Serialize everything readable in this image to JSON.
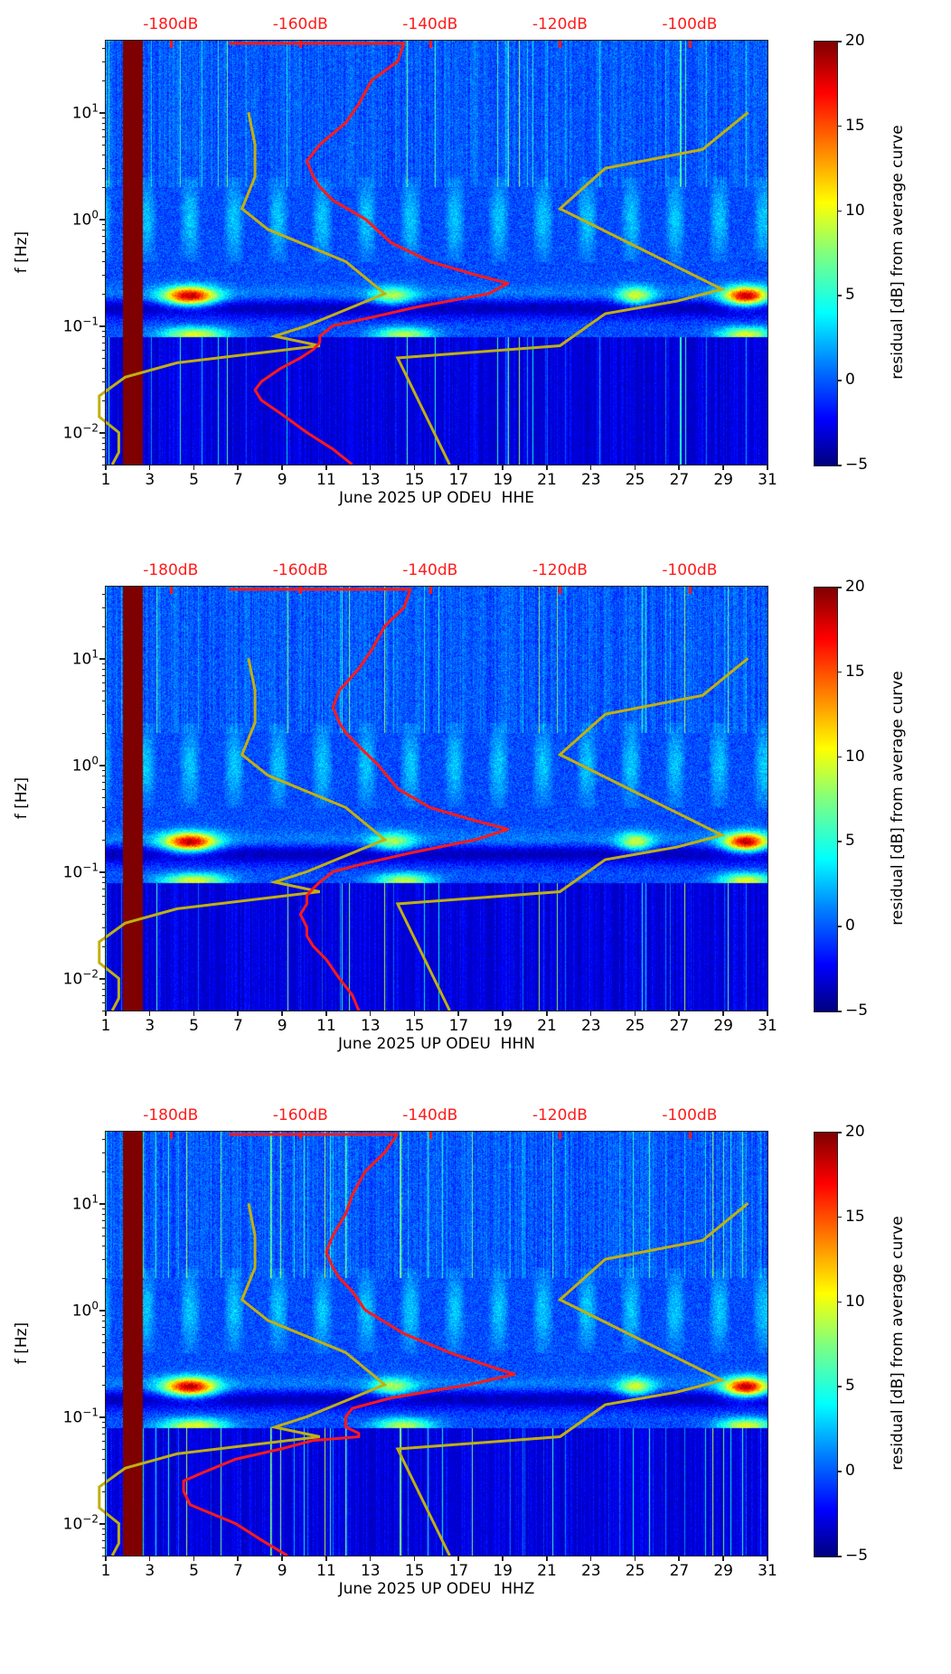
{
  "chart_data": [
    {
      "type": "heatmap",
      "component": "HHE",
      "xlabel": "June 2025 UP ODEU  HHE",
      "ylabel": "f [Hz]",
      "xlim": [
        1,
        31
      ],
      "ylim": [
        0.005,
        47
      ],
      "yscale": "log",
      "x_ticks": [
        "1",
        "3",
        "5",
        "7",
        "9",
        "11",
        "13",
        "15",
        "17",
        "19",
        "21",
        "23",
        "25",
        "27",
        "29",
        "31"
      ],
      "y_ticks": [
        {
          "base": "10",
          "exp": "1",
          "value": 10
        },
        {
          "base": "10",
          "exp": "0",
          "value": 1
        },
        {
          "base": "10",
          "exp": "−1",
          "value": 0.1
        },
        {
          "base": "10",
          "exp": "−2",
          "value": 0.01
        }
      ],
      "top_axis_ticks": [
        "-180dB",
        "-160dB",
        "-140dB",
        "-120dB",
        "-100dB"
      ],
      "top_axis_range_db": [
        -190,
        -88
      ],
      "colorbar": {
        "label": "residual [dB] from average curve",
        "min": -5,
        "max": 20,
        "ticks": [
          "20",
          "15",
          "10",
          "5",
          "0",
          "−5"
        ],
        "colormap": "jet"
      },
      "gap_days": [
        1.75,
        2.65
      ],
      "average_psd_db": {
        "freq_hz": [
          45,
          30,
          20,
          12,
          8,
          5,
          3.5,
          2.5,
          2,
          1.5,
          1,
          0.6,
          0.4,
          0.3,
          0.25,
          0.2,
          0.15,
          0.12,
          0.1,
          0.08,
          0.07,
          0.06,
          0.05,
          0.04,
          0.03,
          0.025,
          0.02,
          0.015,
          0.01,
          0.007,
          0.005
        ],
        "db": [
          -144,
          -145,
          -149,
          -151,
          -153,
          -157,
          -159,
          -158,
          -157,
          -155,
          -150,
          -146,
          -140,
          -133,
          -128,
          -131,
          -142,
          -149,
          -155,
          -157,
          -157,
          -158,
          -160,
          -163,
          -166,
          -167,
          -166,
          -163,
          -159,
          -155,
          -152
        ]
      },
      "noise_model_db": {
        "low": {
          "freq_hz": [
            10,
            5,
            2.5,
            1.25,
            0.8,
            0.4,
            0.2,
            0.1,
            0.08,
            0.065,
            0.045,
            0.033,
            0.022,
            0.014,
            0.01,
            0.0065,
            0.005
          ],
          "db": [
            -168,
            -167,
            -167,
            -169,
            -165,
            -153,
            -147,
            -159,
            -164,
            -157,
            -179,
            -187,
            -191,
            -191,
            -188,
            -188,
            -189
          ]
        },
        "high": {
          "freq_hz": [
            10,
            4.5,
            3,
            1.25,
            0.22,
            0.17,
            0.13,
            0.065,
            0.05,
            0.005
          ],
          "db": [
            -91,
            -98,
            -113,
            -120,
            -95,
            -102,
            -113,
            -120,
            -145,
            -137
          ]
        }
      }
    },
    {
      "type": "heatmap",
      "component": "HHN",
      "xlabel": "June 2025 UP ODEU  HHN",
      "ylabel": "f [Hz]",
      "xlim": [
        1,
        31
      ],
      "ylim": [
        0.005,
        47
      ],
      "yscale": "log",
      "x_ticks": [
        "1",
        "3",
        "5",
        "7",
        "9",
        "11",
        "13",
        "15",
        "17",
        "19",
        "21",
        "23",
        "25",
        "27",
        "29",
        "31"
      ],
      "y_ticks": [
        {
          "base": "10",
          "exp": "1",
          "value": 10
        },
        {
          "base": "10",
          "exp": "0",
          "value": 1
        },
        {
          "base": "10",
          "exp": "−1",
          "value": 0.1
        },
        {
          "base": "10",
          "exp": "−2",
          "value": 0.01
        }
      ],
      "top_axis_ticks": [
        "-180dB",
        "-160dB",
        "-140dB",
        "-120dB",
        "-100dB"
      ],
      "top_axis_range_db": [
        -190,
        -88
      ],
      "colorbar": {
        "label": "residual [dB] from average curve",
        "min": -5,
        "max": 20,
        "ticks": [
          "20",
          "15",
          "10",
          "5",
          "0",
          "−5"
        ],
        "colormap": "jet"
      },
      "gap_days": [
        1.75,
        2.65
      ],
      "average_psd_db": {
        "freq_hz": [
          45,
          30,
          20,
          12,
          8,
          5,
          3.5,
          2.5,
          2,
          1.5,
          1,
          0.6,
          0.4,
          0.3,
          0.25,
          0.2,
          0.15,
          0.12,
          0.1,
          0.08,
          0.07,
          0.06,
          0.05,
          0.04,
          0.03,
          0.025,
          0.02,
          0.015,
          0.01,
          0.007,
          0.005
        ],
        "db": [
          -143,
          -144,
          -147,
          -149,
          -151,
          -154,
          -155,
          -154,
          -153,
          -151,
          -148,
          -145,
          -140,
          -133,
          -128,
          -133,
          -143,
          -150,
          -155,
          -157,
          -158,
          -159,
          -159,
          -160,
          -159,
          -159,
          -158,
          -156,
          -154,
          -152,
          -151
        ]
      },
      "noise_model_db": {
        "low": {
          "freq_hz": [
            10,
            5,
            2.5,
            1.25,
            0.8,
            0.4,
            0.2,
            0.1,
            0.08,
            0.065,
            0.045,
            0.033,
            0.022,
            0.014,
            0.01,
            0.0065,
            0.005
          ],
          "db": [
            -168,
            -167,
            -167,
            -169,
            -165,
            -153,
            -147,
            -159,
            -164,
            -157,
            -179,
            -187,
            -191,
            -191,
            -188,
            -188,
            -189
          ]
        },
        "high": {
          "freq_hz": [
            10,
            4.5,
            3,
            1.25,
            0.22,
            0.17,
            0.13,
            0.065,
            0.05,
            0.005
          ],
          "db": [
            -91,
            -98,
            -113,
            -120,
            -95,
            -102,
            -113,
            -120,
            -145,
            -137
          ]
        }
      }
    },
    {
      "type": "heatmap",
      "component": "HHZ",
      "xlabel": "June 2025 UP ODEU  HHZ",
      "ylabel": "f [Hz]",
      "xlim": [
        1,
        31
      ],
      "ylim": [
        0.005,
        47
      ],
      "yscale": "log",
      "x_ticks": [
        "1",
        "3",
        "5",
        "7",
        "9",
        "11",
        "13",
        "15",
        "17",
        "19",
        "21",
        "23",
        "25",
        "27",
        "29",
        "31"
      ],
      "y_ticks": [
        {
          "base": "10",
          "exp": "1",
          "value": 10
        },
        {
          "base": "10",
          "exp": "0",
          "value": 1
        },
        {
          "base": "10",
          "exp": "−1",
          "value": 0.1
        },
        {
          "base": "10",
          "exp": "−2",
          "value": 0.01
        }
      ],
      "top_axis_ticks": [
        "-180dB",
        "-160dB",
        "-140dB",
        "-120dB",
        "-100dB"
      ],
      "top_axis_range_db": [
        -190,
        -88
      ],
      "colorbar": {
        "label": "residual [dB] from average curve",
        "min": -5,
        "max": 20,
        "ticks": [
          "20",
          "15",
          "10",
          "5",
          "0",
          "−5"
        ],
        "colormap": "jet"
      },
      "gap_days": [
        1.75,
        2.65
      ],
      "average_psd_db": {
        "freq_hz": [
          45,
          30,
          20,
          12,
          8,
          5,
          3.5,
          2.5,
          2,
          1.5,
          1,
          0.6,
          0.4,
          0.3,
          0.25,
          0.2,
          0.15,
          0.12,
          0.1,
          0.08,
          0.07,
          0.065,
          0.06,
          0.05,
          0.04,
          0.03,
          0.025,
          0.02,
          0.015,
          0.01,
          0.007,
          0.005
        ],
        "db": [
          -145,
          -147,
          -150,
          -152,
          -153,
          -155,
          -156,
          -155,
          -154,
          -152,
          -150,
          -144,
          -137,
          -131,
          -127,
          -134,
          -146,
          -152,
          -153,
          -153,
          -151,
          -151,
          -158,
          -163,
          -170,
          -175,
          -178,
          -178,
          -177,
          -170,
          -166,
          -162
        ]
      },
      "noise_model_db": {
        "low": {
          "freq_hz": [
            10,
            5,
            2.5,
            1.25,
            0.8,
            0.4,
            0.2,
            0.1,
            0.08,
            0.065,
            0.045,
            0.033,
            0.022,
            0.014,
            0.01,
            0.0065,
            0.005
          ],
          "db": [
            -168,
            -167,
            -167,
            -169,
            -165,
            -153,
            -147,
            -159,
            -164,
            -157,
            -179,
            -187,
            -191,
            -191,
            -188,
            -188,
            -189
          ]
        },
        "high": {
          "freq_hz": [
            10,
            4.5,
            3,
            1.25,
            0.22,
            0.17,
            0.13,
            0.065,
            0.05,
            0.005
          ],
          "db": [
            -91,
            -98,
            -113,
            -120,
            -95,
            -102,
            -113,
            -120,
            -145,
            -137
          ]
        }
      }
    }
  ],
  "colors": {
    "psd_curve": "#ff1a1a",
    "noise_model": "#c0b010",
    "db_labels": "#ff1a1a",
    "gap": "#7f0000"
  }
}
